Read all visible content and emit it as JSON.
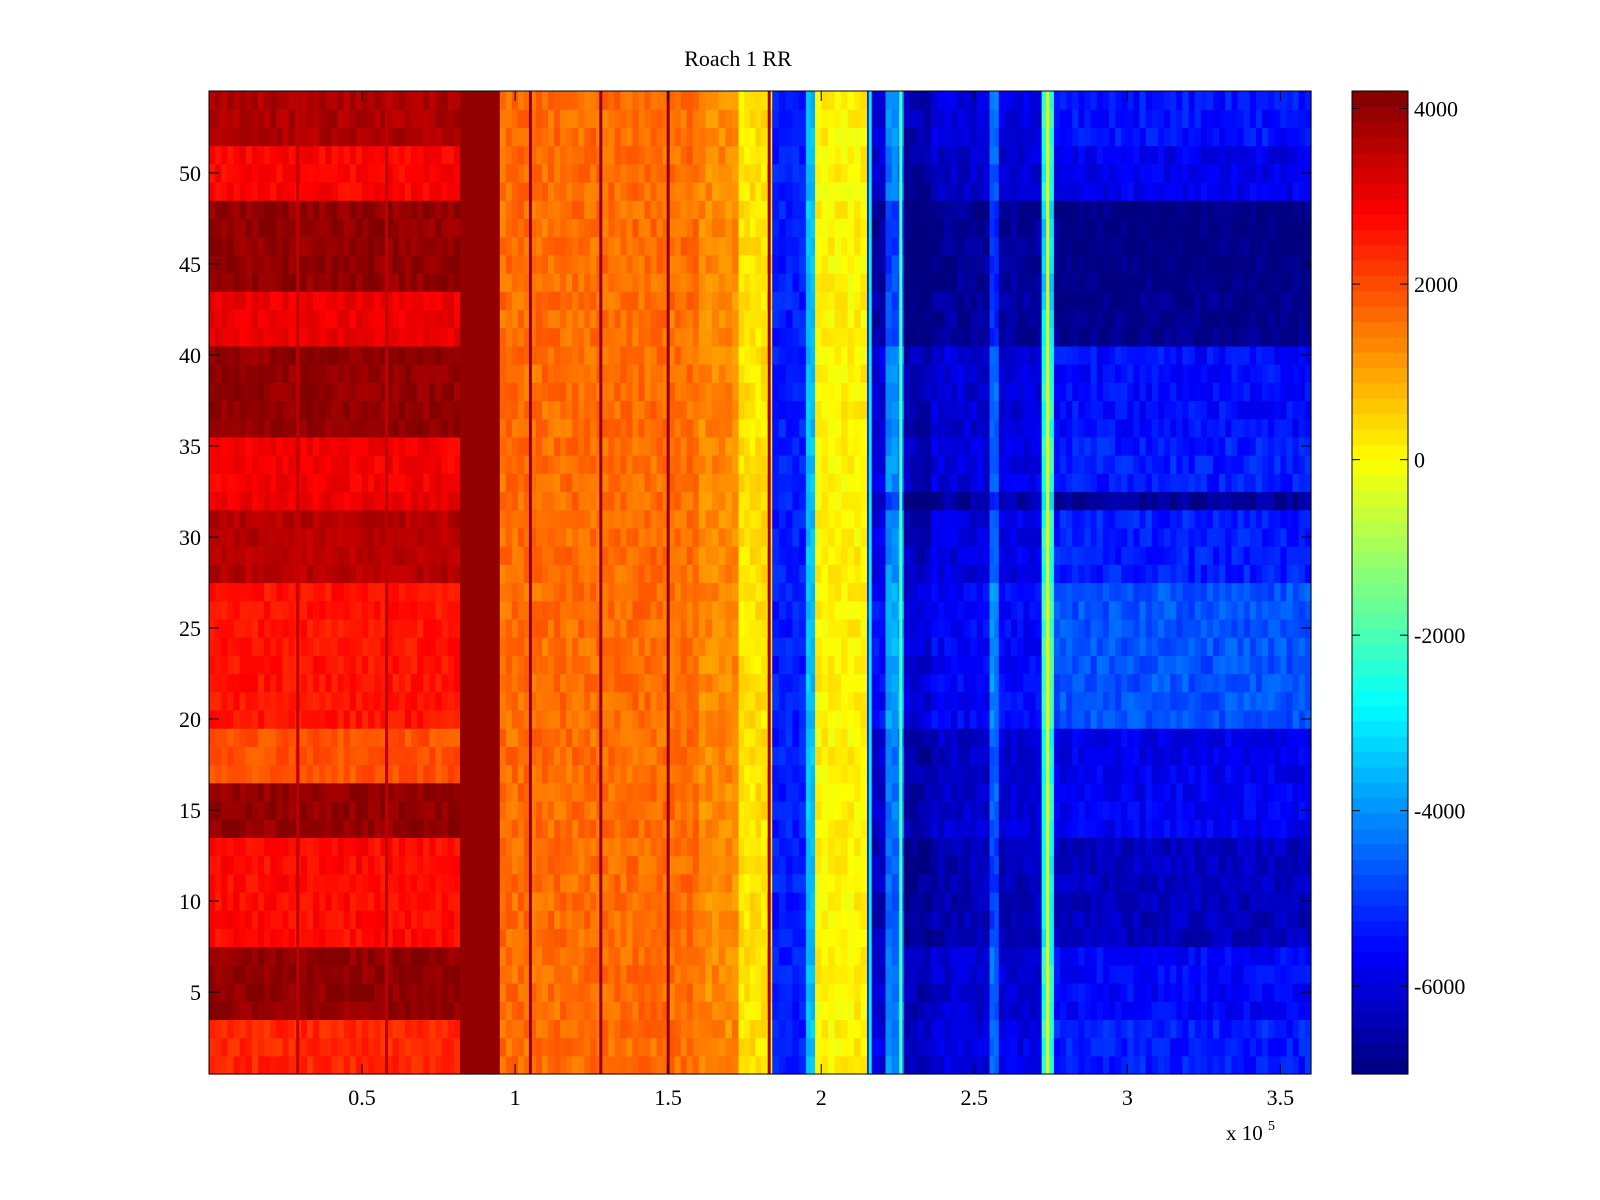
{
  "chart_data": {
    "type": "heatmap",
    "title": "Roach 1 RR",
    "xlabel": "",
    "ylabel": "",
    "x_multiplier_label": "x 10",
    "x_multiplier_exponent": "5",
    "xlim": [
      0,
      3.6
    ],
    "ylim": [
      0.5,
      54.5
    ],
    "x_ticks": [
      0.5,
      1,
      1.5,
      2,
      2.5,
      3,
      3.5
    ],
    "x_tick_labels": [
      "0.5",
      "1",
      "1.5",
      "2",
      "2.5",
      "3",
      "3.5"
    ],
    "y_ticks": [
      5,
      10,
      15,
      20,
      25,
      30,
      35,
      40,
      45,
      50
    ],
    "y_tick_labels": [
      "5",
      "10",
      "15",
      "20",
      "25",
      "30",
      "35",
      "40",
      "45",
      "50"
    ],
    "colorbar": {
      "colormap": "jet",
      "clim": [
        -7000,
        4200
      ],
      "ticks": [
        4000,
        2000,
        0,
        -2000,
        -4000,
        -6000
      ],
      "tick_labels": [
        "4000",
        "2000",
        "0",
        "-2000",
        "-4000",
        "-6000"
      ]
    },
    "column_bands": [
      {
        "x_start": 0.0,
        "x_end": 0.82,
        "value": 3000
      },
      {
        "x_start": 0.82,
        "x_end": 0.95,
        "value": 4000
      },
      {
        "x_start": 0.95,
        "x_end": 1.6,
        "value": 1600
      },
      {
        "x_start": 1.6,
        "x_end": 1.73,
        "value": 1300
      },
      {
        "x_start": 1.73,
        "x_end": 1.84,
        "value": 300
      },
      {
        "x_start": 1.84,
        "x_end": 1.95,
        "value": -5300
      },
      {
        "x_start": 1.95,
        "x_end": 1.98,
        "value": -3500
      },
      {
        "x_start": 1.98,
        "x_end": 2.15,
        "value": 100
      },
      {
        "x_start": 2.15,
        "x_end": 2.21,
        "value": -6000
      },
      {
        "x_start": 2.21,
        "x_end": 2.27,
        "value": -4200
      },
      {
        "x_start": 2.27,
        "x_end": 2.36,
        "value": -6500
      },
      {
        "x_start": 2.36,
        "x_end": 2.55,
        "value": -6100
      },
      {
        "x_start": 2.55,
        "x_end": 2.58,
        "value": -4500
      },
      {
        "x_start": 2.58,
        "x_end": 2.72,
        "value": -6000
      },
      {
        "x_start": 2.72,
        "x_end": 2.76,
        "value": -2500
      },
      {
        "x_start": 2.76,
        "x_end": 3.6,
        "value": -5600
      }
    ],
    "row_patterns": [
      {
        "y_start": 0.5,
        "y_end": 3.5,
        "left_value": 2400,
        "right_value": -5300
      },
      {
        "y_start": 3.5,
        "y_end": 7.5,
        "left_value": 4000,
        "right_value": -5600
      },
      {
        "y_start": 7.5,
        "y_end": 13.5,
        "left_value": 2700,
        "right_value": -6300
      },
      {
        "y_start": 13.5,
        "y_end": 16.5,
        "left_value": 4000,
        "right_value": -5700
      },
      {
        "y_start": 16.5,
        "y_end": 19.5,
        "left_value": 1900,
        "right_value": -5800
      },
      {
        "y_start": 19.5,
        "y_end": 27.5,
        "left_value": 2600,
        "right_value": -4700
      },
      {
        "y_start": 27.5,
        "y_end": 31.5,
        "left_value": 3600,
        "right_value": -5300
      },
      {
        "y_start": 31.5,
        "y_end": 32.5,
        "left_value": 3000,
        "right_value": -6700
      },
      {
        "y_start": 32.5,
        "y_end": 35.5,
        "left_value": 2900,
        "right_value": -5300
      },
      {
        "y_start": 35.5,
        "y_end": 40.5,
        "left_value": 4000,
        "right_value": -5500
      },
      {
        "y_start": 40.5,
        "y_end": 43.5,
        "left_value": 3000,
        "right_value": -6900
      },
      {
        "y_start": 43.5,
        "y_end": 48.5,
        "left_value": 4000,
        "right_value": -7000
      },
      {
        "y_start": 48.5,
        "y_end": 51.5,
        "left_value": 2800,
        "right_value": -5800
      },
      {
        "y_start": 51.5,
        "y_end": 54.5,
        "left_value": 3700,
        "right_value": -5400
      }
    ],
    "line_features": [
      {
        "x": 0.29,
        "value": 3500
      },
      {
        "x": 0.58,
        "value": 3500
      },
      {
        "x": 1.05,
        "value": 4000
      },
      {
        "x": 1.28,
        "value": 4000
      },
      {
        "x": 1.5,
        "value": 4000
      },
      {
        "x": 1.83,
        "value": 3800
      },
      {
        "x": 2.16,
        "value": -3000
      },
      {
        "x": 2.26,
        "value": -2000
      },
      {
        "x": 2.74,
        "value": 200
      }
    ]
  }
}
